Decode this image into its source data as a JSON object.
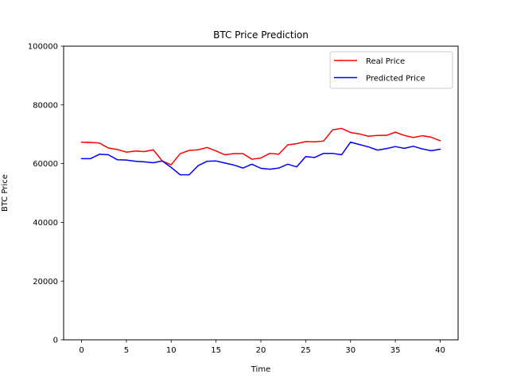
{
  "chart_data": {
    "type": "line",
    "title": "BTC Price Prediction",
    "xlabel": "Time",
    "ylabel": "BTC Price",
    "xlim": [
      -2,
      42
    ],
    "ylim": [
      0,
      100000
    ],
    "xticks": [
      0,
      5,
      10,
      15,
      20,
      25,
      30,
      35,
      40
    ],
    "yticks": [
      0,
      20000,
      40000,
      60000,
      80000,
      100000
    ],
    "grid": false,
    "legend_position": "top-right",
    "x": [
      0,
      1,
      2,
      3,
      4,
      5,
      6,
      7,
      8,
      9,
      10,
      11,
      12,
      13,
      14,
      15,
      16,
      17,
      18,
      19,
      20,
      21,
      22,
      23,
      24,
      25,
      26,
      27,
      28,
      29,
      30,
      31,
      32,
      33,
      34,
      35,
      36,
      37,
      38,
      39,
      40
    ],
    "series": [
      {
        "name": "Real Price",
        "color": "#ff0000",
        "values": [
          67300,
          67200,
          67000,
          65300,
          64800,
          63900,
          64300,
          64100,
          64700,
          60900,
          59600,
          63400,
          64500,
          64700,
          65500,
          64300,
          63000,
          63400,
          63400,
          61500,
          61900,
          63500,
          63200,
          66400,
          66800,
          67500,
          67400,
          67700,
          71500,
          72000,
          70600,
          70100,
          69300,
          69600,
          69600,
          70700,
          69600,
          68900,
          69500,
          69000,
          67800
        ]
      },
      {
        "name": "Predicted Price",
        "color": "#0000ff",
        "values": [
          61700,
          61700,
          63200,
          63000,
          61300,
          61200,
          60800,
          60600,
          60300,
          60900,
          58700,
          56200,
          56200,
          59300,
          60800,
          60900,
          60200,
          59500,
          58500,
          59800,
          58400,
          58100,
          58500,
          59800,
          58900,
          62400,
          62100,
          63500,
          63500,
          63000,
          67300,
          66500,
          65700,
          64600,
          65100,
          65800,
          65200,
          65900,
          65000,
          64400,
          64900
        ]
      }
    ]
  }
}
